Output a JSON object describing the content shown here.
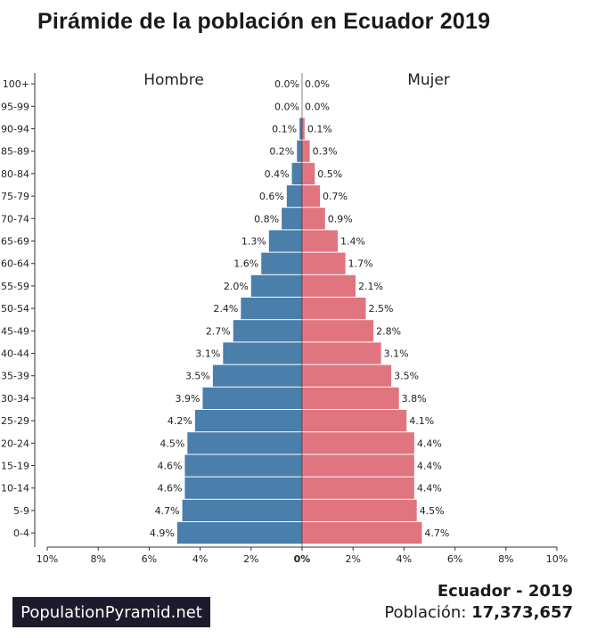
{
  "title": "Pirámide de la población en Ecuador 2019",
  "chart_data": {
    "type": "bar",
    "orientation": "horizontal-population-pyramid",
    "categories": [
      "0-4",
      "5-9",
      "10-14",
      "15-19",
      "20-24",
      "25-29",
      "30-34",
      "35-39",
      "40-44",
      "45-49",
      "50-54",
      "55-59",
      "60-64",
      "65-69",
      "70-74",
      "75-79",
      "80-84",
      "85-89",
      "90-94",
      "95-99",
      "100+"
    ],
    "series": [
      {
        "name": "Hombre",
        "side": "left",
        "color": "#4a7eab",
        "values": [
          4.9,
          4.7,
          4.6,
          4.6,
          4.5,
          4.2,
          3.9,
          3.5,
          3.1,
          2.7,
          2.4,
          2.0,
          1.6,
          1.3,
          0.8,
          0.6,
          0.4,
          0.2,
          0.1,
          0.0,
          0.0
        ]
      },
      {
        "name": "Mujer",
        "side": "right",
        "color": "#e07580",
        "values": [
          4.7,
          4.5,
          4.4,
          4.4,
          4.4,
          4.1,
          3.8,
          3.5,
          3.1,
          2.8,
          2.5,
          2.1,
          1.7,
          1.4,
          0.9,
          0.7,
          0.5,
          0.3,
          0.1,
          0.0,
          0.0
        ]
      }
    ],
    "x_ticks": [
      "10%",
      "8%",
      "6%",
      "4%",
      "2%",
      "0%",
      "2%",
      "4%",
      "6%",
      "8%",
      "10%"
    ],
    "xlim": [
      -10,
      10
    ],
    "unit": "%"
  },
  "footer": {
    "brand": "PopulationPyramid.net",
    "country_year": "Ecuador - 2019",
    "population_label": "Población: ",
    "population_value": "17,373,657"
  }
}
